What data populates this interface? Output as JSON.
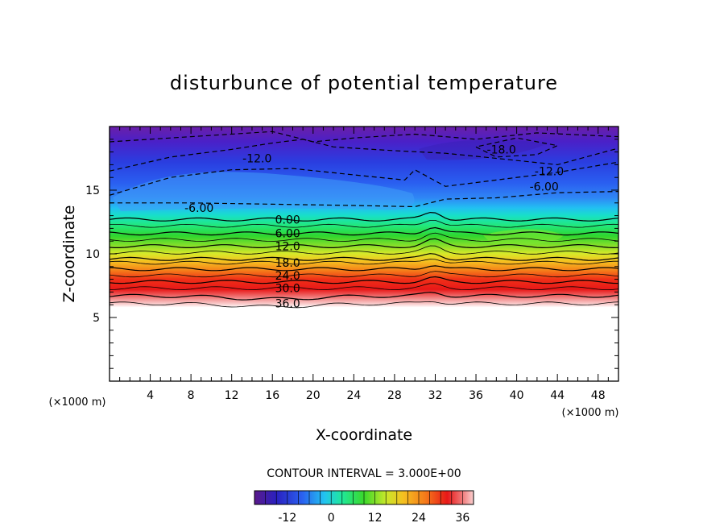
{
  "chart_data": {
    "type": "contour",
    "title": "disturbunce of potential temperature",
    "xlabel": "X-coordinate",
    "ylabel": "Z-coordinate",
    "x_unit": "(×1000 m)",
    "z_unit": "(×1000 m)",
    "xlim": [
      0,
      50
    ],
    "ylim": [
      0,
      20
    ],
    "x_ticks": [
      "4",
      "8",
      "12",
      "16",
      "20",
      "24",
      "28",
      "32",
      "36",
      "40",
      "44",
      "48"
    ],
    "y_ticks": [
      "5",
      "10",
      "15"
    ],
    "contour_interval_text": "CONTOUR INTERVAL = 3.000E+00",
    "contour_interval": 3.0,
    "colorbar": {
      "min": -21,
      "max": 39,
      "ticks": [
        "-12",
        "0",
        "12",
        "24",
        "36"
      ]
    },
    "contour_labels": [
      {
        "text": "-18.0",
        "x": 38.5,
        "z": 18.2
      },
      {
        "text": "-12.0",
        "x": 14.5,
        "z": 17.5
      },
      {
        "text": "-12.0",
        "x": 43.2,
        "z": 16.5
      },
      {
        "text": "-6.00",
        "x": 42.7,
        "z": 15.3
      },
      {
        "text": "-6.00",
        "x": 8.8,
        "z": 13.6
      },
      {
        "text": "0.00",
        "x": 17.5,
        "z": 12.7
      },
      {
        "text": "6.00",
        "x": 17.5,
        "z": 11.6
      },
      {
        "text": "12.0",
        "x": 17.5,
        "z": 10.6
      },
      {
        "text": "18.0",
        "x": 17.5,
        "z": 9.3
      },
      {
        "text": "24.0",
        "x": 17.5,
        "z": 8.3
      },
      {
        "text": "30.0",
        "x": 17.5,
        "z": 7.3
      },
      {
        "text": "36.0",
        "x": 17.5,
        "z": 6.1
      }
    ]
  }
}
